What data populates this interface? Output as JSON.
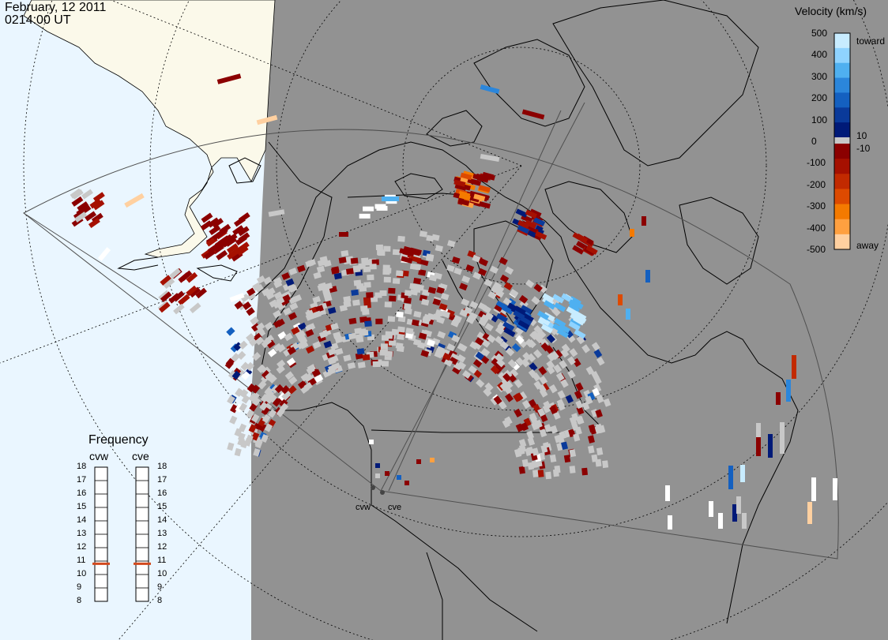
{
  "header": {
    "date": "February, 12 2011",
    "time": "0214:00 UT"
  },
  "velocity_scale": {
    "title": "Velocity (km/s)",
    "ticks": [
      "500",
      "400",
      "300",
      "200",
      "100",
      "0",
      "-100",
      "-200",
      "-300",
      "-400",
      "-500"
    ],
    "threshold_labels": [
      "10",
      "-10"
    ],
    "end_labels": {
      "top": "toward",
      "bottom": "away"
    },
    "toward_colors": [
      "#c8ecff",
      "#8fd3ff",
      "#4fb0f0",
      "#2b86db",
      "#1460c0",
      "#0a3a9a",
      "#001a78"
    ],
    "away_colors": [
      "#8b0000",
      "#a51000",
      "#c22a00",
      "#dd4a00",
      "#f47a00",
      "#ffa040",
      "#ffd0a0"
    ],
    "ground_scatter_color": "#c8c8c8"
  },
  "frequency_panel": {
    "title": "Frequency",
    "radars": [
      {
        "name": "cvw",
        "current_mhz": 10.8
      },
      {
        "name": "cve",
        "current_mhz": 10.8
      }
    ],
    "ticks": [
      "18",
      "17",
      "16",
      "15",
      "14",
      "13",
      "12",
      "11",
      "10",
      "9",
      "8"
    ],
    "marker_color": "#d24a1e"
  },
  "map": {
    "background_color": "#929292",
    "ocean_color": "#eaf6ff",
    "land_color": "#fbf9ea",
    "stations": [
      {
        "name": "cvw"
      },
      {
        "name": "cve"
      }
    ]
  }
}
